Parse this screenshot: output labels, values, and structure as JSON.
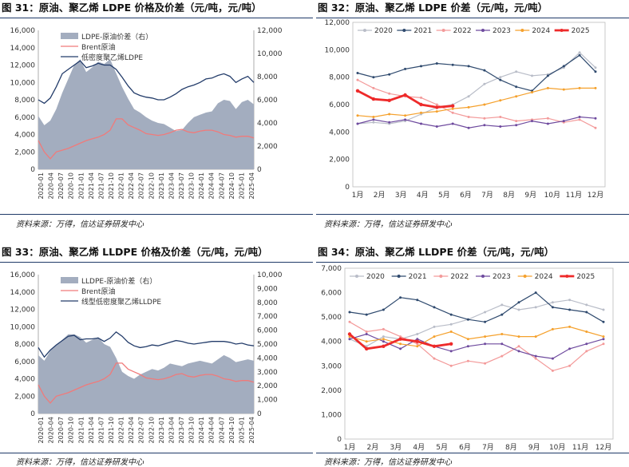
{
  "source_label": "资料来源：万得，信达证券研发中心",
  "chart_data": [
    {
      "id": "fig31",
      "type": "area+line",
      "title": "图 31：原油、聚乙烯 LDPE 价格及价差（元/吨，元/吨）",
      "left_ticks": [
        "0",
        "2,000",
        "4,000",
        "6,000",
        "8,000",
        "10,000",
        "12,000",
        "14,000",
        "16,000"
      ],
      "right_ticks": [
        "0",
        "2,000",
        "4,000",
        "6,000",
        "8,000",
        "10,000",
        "12,000"
      ],
      "ylim_left": [
        0,
        16000
      ],
      "ylim_right": [
        0,
        12000
      ],
      "x_ticks": [
        "2020-01",
        "2020-04",
        "2020-07",
        "2020-10",
        "2021-01",
        "2021-04",
        "2021-07",
        "2021-10",
        "2022-01",
        "2022-04",
        "2022-07",
        "2022-10",
        "2023-01",
        "2023-04",
        "2023-07",
        "2023-10",
        "2024-01",
        "2024-04",
        "2024-07",
        "2024-10",
        "2025-01",
        "2025-04"
      ],
      "series": [
        {
          "name": "LDPE-原油价差（右）",
          "kind": "area",
          "axis": "right",
          "color": "#A3ADBF",
          "values": [
            4600,
            3800,
            4200,
            5200,
            6600,
            7800,
            9000,
            9500,
            8400,
            8800,
            9300,
            9100,
            9500,
            8300,
            7100,
            6100,
            5200,
            4900,
            4500,
            4200,
            4000,
            3900,
            3600,
            3300,
            3400,
            4000,
            4500,
            4700,
            4900,
            5000,
            5700,
            6000,
            5900,
            5200,
            5800,
            6000,
            5600
          ]
        },
        {
          "name": "Brent原油",
          "kind": "line",
          "axis": "left",
          "color": "#F07A7A",
          "values": [
            3300,
            2000,
            1200,
            2000,
            2200,
            2400,
            2700,
            3000,
            3300,
            3500,
            3700,
            4000,
            4500,
            5800,
            5800,
            5100,
            4800,
            4500,
            4100,
            4000,
            3900,
            4000,
            4200,
            4500,
            4600,
            4300,
            4200,
            4400,
            4500,
            4500,
            4300,
            4000,
            3900,
            3700,
            3800,
            3800,
            3600
          ]
        },
        {
          "name": "低密度聚乙烯LDPE",
          "kind": "line",
          "axis": "left",
          "color": "#233C6A",
          "values": [
            8000,
            7600,
            8200,
            9500,
            11000,
            11500,
            12000,
            12500,
            11700,
            11900,
            12200,
            12000,
            12000,
            11500,
            10600,
            9600,
            8800,
            8500,
            8300,
            8200,
            8000,
            8000,
            8300,
            8700,
            9200,
            9500,
            9700,
            10000,
            10400,
            10500,
            10800,
            11000,
            10700,
            10000,
            10400,
            10700,
            10000
          ]
        }
      ],
      "legend": [
        "LDPE-原油价差（右）",
        "Brent原油",
        "低密度聚乙烯LDPE"
      ],
      "legend_position": "top-left"
    },
    {
      "id": "fig32",
      "type": "line",
      "title": "图 32：原油、聚乙烯 LDPE 价差（元/吨，元/吨）",
      "y_ticks": [
        "0",
        "2,000",
        "4,000",
        "6,000",
        "8,000",
        "10,000",
        "12,000"
      ],
      "ylim": [
        0,
        12000
      ],
      "x_ticks": [
        "1月",
        "2月",
        "3月",
        "4月",
        "5月",
        "6月",
        "7月",
        "8月",
        "9月",
        "10月",
        "11月",
        "12月"
      ],
      "series": [
        {
          "name": "2020",
          "color": "#B9BDC8",
          "marker": "circle",
          "values": [
            4600,
            4700,
            4600,
            4800,
            5300,
            5800,
            6000,
            6600,
            7500,
            8000,
            8400,
            8100,
            8200,
            8700,
            9800,
            8700
          ]
        },
        {
          "name": "2021",
          "color": "#2F4A6E",
          "marker": "circle",
          "values": [
            8300,
            8000,
            8200,
            8600,
            8800,
            9000,
            8900,
            8800,
            8500,
            7800,
            7300,
            7000,
            8100,
            8800,
            9600,
            8400
          ]
        },
        {
          "name": "2022",
          "color": "#F39A9A",
          "marker": "circle",
          "values": [
            7800,
            7200,
            6800,
            6600,
            6500,
            6000,
            5400,
            5100,
            5000,
            5100,
            4800,
            4900,
            5000,
            4700,
            4900,
            4300
          ]
        },
        {
          "name": "2023",
          "color": "#6E4A9E",
          "marker": "circle",
          "values": [
            4600,
            4900,
            4700,
            4900,
            4600,
            4400,
            4600,
            4300,
            4500,
            4400,
            4500,
            4800,
            4600,
            4800,
            5100,
            5000
          ]
        },
        {
          "name": "2024",
          "color": "#F5A12D",
          "marker": "circle",
          "values": [
            5200,
            5100,
            5300,
            5200,
            5400,
            5500,
            5700,
            5800,
            6000,
            6300,
            6600,
            6900,
            7200,
            7100,
            7200,
            7200
          ]
        },
        {
          "name": "2025",
          "color": "#EE2A2A",
          "marker": "circle",
          "values": [
            7000,
            6400,
            6300,
            6700,
            6000,
            5800,
            5900
          ]
        }
      ],
      "legend_position": "top"
    },
    {
      "id": "fig33",
      "type": "area+line",
      "title": "图 33：原油、聚乙烯 LLDPE 价格及价差（元/吨，元/吨）",
      "left_ticks": [
        "0",
        "2,000",
        "4,000",
        "6,000",
        "8,000",
        "10,000",
        "12,000",
        "14,000",
        "16,000"
      ],
      "right_ticks": [
        "0",
        "1,000",
        "2,000",
        "3,000",
        "4,000",
        "5,000",
        "6,000",
        "7,000",
        "8,000",
        "9,000",
        "10,000"
      ],
      "ylim_left": [
        0,
        16000
      ],
      "ylim_right": [
        0,
        10000
      ],
      "x_ticks": [
        "2020-01",
        "2020-04",
        "2020-07",
        "2020-10",
        "2021-01",
        "2021-04",
        "2021-07",
        "2021-10",
        "2022-01",
        "2022-04",
        "2022-07",
        "2022-10",
        "2023-01",
        "2023-04",
        "2023-07",
        "2023-10",
        "2024-01",
        "2024-04",
        "2024-07",
        "2024-10",
        "2025-01",
        "2025-04"
      ],
      "series": [
        {
          "name": "LLDPE-原油价差（右）",
          "kind": "area",
          "axis": "right",
          "color": "#A3ADBF",
          "values": [
            4200,
            3800,
            4500,
            4900,
            5300,
            5700,
            5700,
            5500,
            5100,
            5300,
            5500,
            5000,
            4800,
            4000,
            3000,
            2700,
            2500,
            2800,
            3000,
            3200,
            3100,
            3300,
            3600,
            3500,
            3400,
            3600,
            3700,
            3800,
            3700,
            3600,
            3900,
            4200,
            4000,
            3700,
            3800,
            3900,
            3800
          ]
        },
        {
          "name": "Brent原油",
          "kind": "line",
          "axis": "left",
          "color": "#F07A7A",
          "values": [
            3300,
            2000,
            1200,
            2000,
            2200,
            2400,
            2700,
            3000,
            3300,
            3500,
            3700,
            4000,
            4500,
            5800,
            5800,
            5100,
            4800,
            4500,
            4100,
            4000,
            3900,
            4000,
            4200,
            4500,
            4600,
            4300,
            4200,
            4400,
            4500,
            4500,
            4300,
            4000,
            3900,
            3700,
            3800,
            3800,
            3600
          ]
        },
        {
          "name": "线型低密度聚乙烯LLDPE",
          "kind": "line",
          "axis": "left",
          "color": "#233C6A",
          "values": [
            7600,
            6500,
            7300,
            7900,
            8400,
            8900,
            9000,
            8500,
            8600,
            8600,
            8700,
            8300,
            8700,
            9400,
            8900,
            8200,
            7800,
            7600,
            7700,
            7900,
            7800,
            8000,
            8200,
            8400,
            8300,
            8100,
            8000,
            8100,
            8200,
            8300,
            8300,
            8300,
            8200,
            8000,
            8100,
            7900,
            7800
          ]
        }
      ],
      "legend": [
        "LLDPE-原油价差（右）",
        "Brent原油",
        "线型低密度聚乙烯LLDPE"
      ],
      "legend_position": "top-left"
    },
    {
      "id": "fig34",
      "type": "line",
      "title": "图 34：原油、聚乙烯 LLDPE 价差（元/吨，元/吨）",
      "y_ticks": [
        "0",
        "1,000",
        "2,000",
        "3,000",
        "4,000",
        "5,000",
        "6,000",
        "7,000"
      ],
      "ylim": [
        0,
        7000
      ],
      "x_ticks": [
        "1月",
        "2月",
        "3月",
        "4月",
        "5月",
        "6月",
        "7月",
        "8月",
        "9月",
        "10月",
        "11月",
        "12月"
      ],
      "series": [
        {
          "name": "2020",
          "color": "#B9BDC8",
          "marker": "circle",
          "values": [
            4100,
            3800,
            4200,
            4100,
            4300,
            4600,
            4700,
            4900,
            5200,
            5500,
            5300,
            5400,
            5600,
            5700,
            5500,
            5300
          ]
        },
        {
          "name": "2021",
          "color": "#2F4A6E",
          "marker": "circle",
          "values": [
            5200,
            5100,
            5300,
            5800,
            5700,
            5400,
            5100,
            4900,
            4800,
            5100,
            5600,
            6000,
            5400,
            5300,
            5200,
            4800
          ]
        },
        {
          "name": "2022",
          "color": "#F39A9A",
          "marker": "circle",
          "values": [
            4800,
            4400,
            4500,
            4200,
            3900,
            3300,
            3000,
            3200,
            3100,
            3400,
            3800,
            3300,
            2800,
            3000,
            3600,
            3900
          ]
        },
        {
          "name": "2023",
          "color": "#6E4A9E",
          "marker": "circle",
          "values": [
            4100,
            4300,
            4000,
            3700,
            4100,
            3800,
            3600,
            3800,
            3900,
            3900,
            3600,
            3400,
            3300,
            3700,
            3900,
            4100
          ]
        },
        {
          "name": "2024",
          "color": "#F5A12D",
          "marker": "circle",
          "values": [
            4200,
            4000,
            4100,
            3900,
            3800,
            4200,
            4400,
            4100,
            4200,
            4300,
            4200,
            4200,
            4500,
            4600,
            4400,
            4200
          ]
        },
        {
          "name": "2025",
          "color": "#EE2A2A",
          "marker": "circle",
          "values": [
            4300,
            3700,
            3800,
            4100,
            4000,
            3800,
            3900
          ]
        }
      ],
      "legend_position": "top"
    }
  ]
}
